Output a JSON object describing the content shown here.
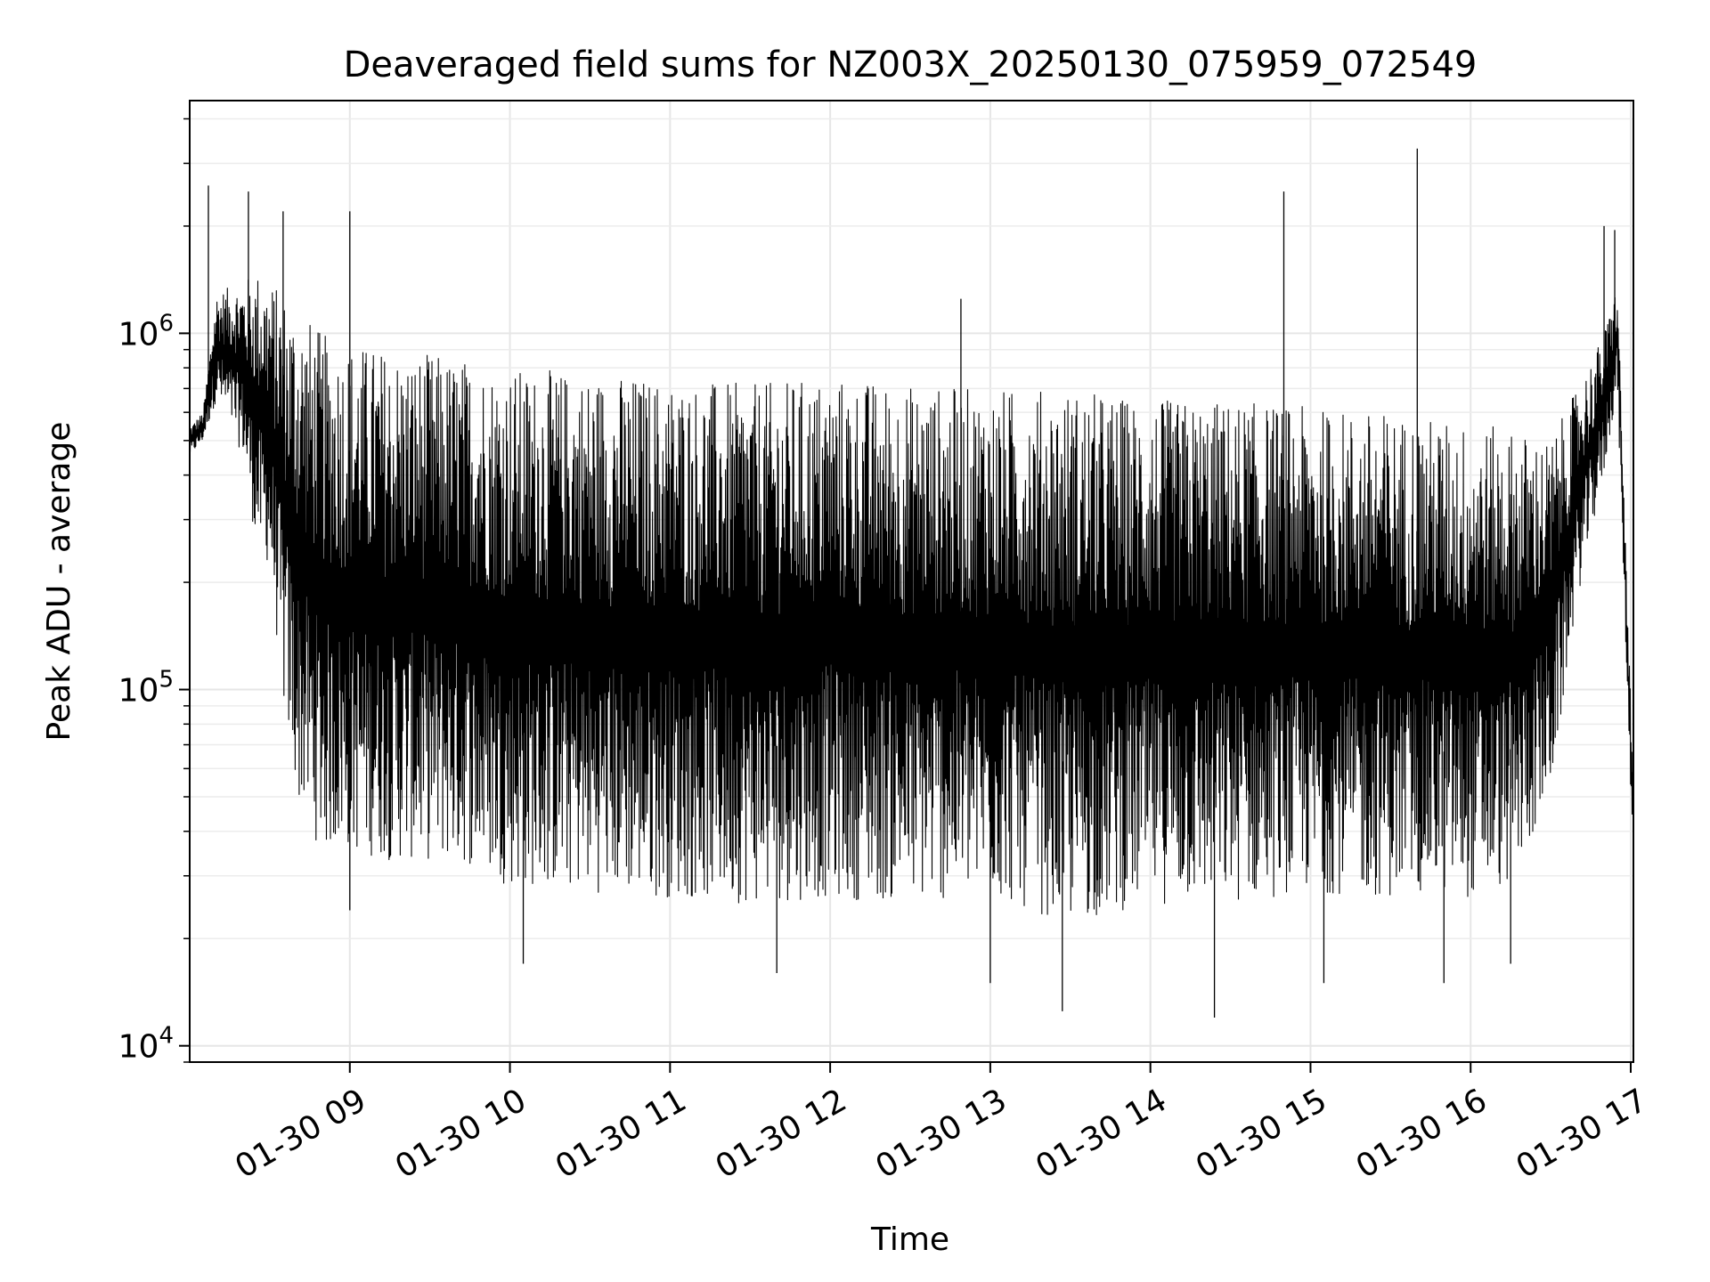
{
  "chart_data": {
    "type": "line",
    "title": "Deaveraged field sums for NZ003X_20250130_075959_072549",
    "xlabel": "Time",
    "ylabel": "Peak ADU - average",
    "xscale": "time",
    "yscale": "log",
    "xlim": [
      "2025-01-30 08:00",
      "2025-01-30 17:01"
    ],
    "ylim": [
      9000,
      4500000
    ],
    "grid": true,
    "line_color": "#000000",
    "x_ticks": [
      "01-30 09",
      "01-30 10",
      "01-30 11",
      "01-30 12",
      "01-30 13",
      "01-30 14",
      "01-30 15",
      "01-30 16",
      "01-30 17"
    ],
    "y_ticks": [
      {
        "value": 10000,
        "base": "10",
        "exp": "4"
      },
      {
        "value": 100000,
        "base": "10",
        "exp": "5"
      },
      {
        "value": 1000000,
        "base": "10",
        "exp": "6"
      }
    ],
    "series": [
      {
        "x": [
          "2025-01-30 08:00",
          "2025-01-30 08:05",
          "2025-01-30 08:10",
          "2025-01-30 08:15",
          "2025-01-30 08:20",
          "2025-01-30 08:25",
          "2025-01-30 08:30",
          "2025-01-30 08:35",
          "2025-01-30 08:40",
          "2025-01-30 08:45",
          "2025-01-30 08:50",
          "2025-01-30 08:55",
          "2025-01-30 09:00",
          "2025-01-30 09:15",
          "2025-01-30 09:30",
          "2025-01-30 09:45",
          "2025-01-30 10:00",
          "2025-01-30 10:30",
          "2025-01-30 11:00",
          "2025-01-30 11:30",
          "2025-01-30 12:00",
          "2025-01-30 12:30",
          "2025-01-30 13:00",
          "2025-01-30 13:30",
          "2025-01-30 14:00",
          "2025-01-30 14:30",
          "2025-01-30 15:00",
          "2025-01-30 15:30",
          "2025-01-30 15:45",
          "2025-01-30 16:00",
          "2025-01-30 16:15",
          "2025-01-30 16:30",
          "2025-01-30 16:40",
          "2025-01-30 16:50",
          "2025-01-30 16:55",
          "2025-01-30 17:00",
          "2025-01-30 17:01"
        ],
        "low": [
          450000,
          500000,
          650000,
          550000,
          450000,
          250000,
          220000,
          90000,
          50000,
          40000,
          35000,
          35000,
          35000,
          33000,
          33000,
          32000,
          28000,
          27000,
          26000,
          25000,
          26000,
          25000,
          26000,
          22000,
          25000,
          25000,
          27000,
          26000,
          27000,
          26000,
          28000,
          50000,
          180000,
          400000,
          700000,
          50000,
          40000
        ],
        "high": [
          550000,
          600000,
          1300000,
          1350000,
          1400000,
          1500000,
          1400000,
          1300000,
          1200000,
          1100000,
          1000000,
          950000,
          950000,
          900000,
          880000,
          850000,
          800000,
          780000,
          750000,
          720000,
          760000,
          720000,
          700000,
          700000,
          650000,
          650000,
          620000,
          600000,
          580000,
          560000,
          540000,
          500000,
          700000,
          1000000,
          1400000,
          90000,
          55000
        ],
        "spikes": [
          {
            "x": "2025-01-30 08:07",
            "y": 2600000
          },
          {
            "x": "2025-01-30 08:22",
            "y": 2500000
          },
          {
            "x": "2025-01-30 08:35",
            "y": 2200000
          },
          {
            "x": "2025-01-30 09:00",
            "y": 2200000
          },
          {
            "x": "2025-01-30 12:49",
            "y": 1250000
          },
          {
            "x": "2025-01-30 14:50",
            "y": 2500000
          },
          {
            "x": "2025-01-30 15:40",
            "y": 3300000
          },
          {
            "x": "2025-01-30 16:50",
            "y": 2000000
          },
          {
            "x": "2025-01-30 16:54",
            "y": 1950000
          }
        ],
        "dips": [
          {
            "x": "2025-01-30 09:00",
            "y": 24000
          },
          {
            "x": "2025-01-30 10:05",
            "y": 17000
          },
          {
            "x": "2025-01-30 11:40",
            "y": 16000
          },
          {
            "x": "2025-01-30 13:00",
            "y": 15000
          },
          {
            "x": "2025-01-30 13:27",
            "y": 12500
          },
          {
            "x": "2025-01-30 14:24",
            "y": 12000
          },
          {
            "x": "2025-01-30 15:05",
            "y": 15000
          },
          {
            "x": "2025-01-30 15:50",
            "y": 15000
          },
          {
            "x": "2025-01-30 16:15",
            "y": 17000
          }
        ]
      }
    ]
  }
}
